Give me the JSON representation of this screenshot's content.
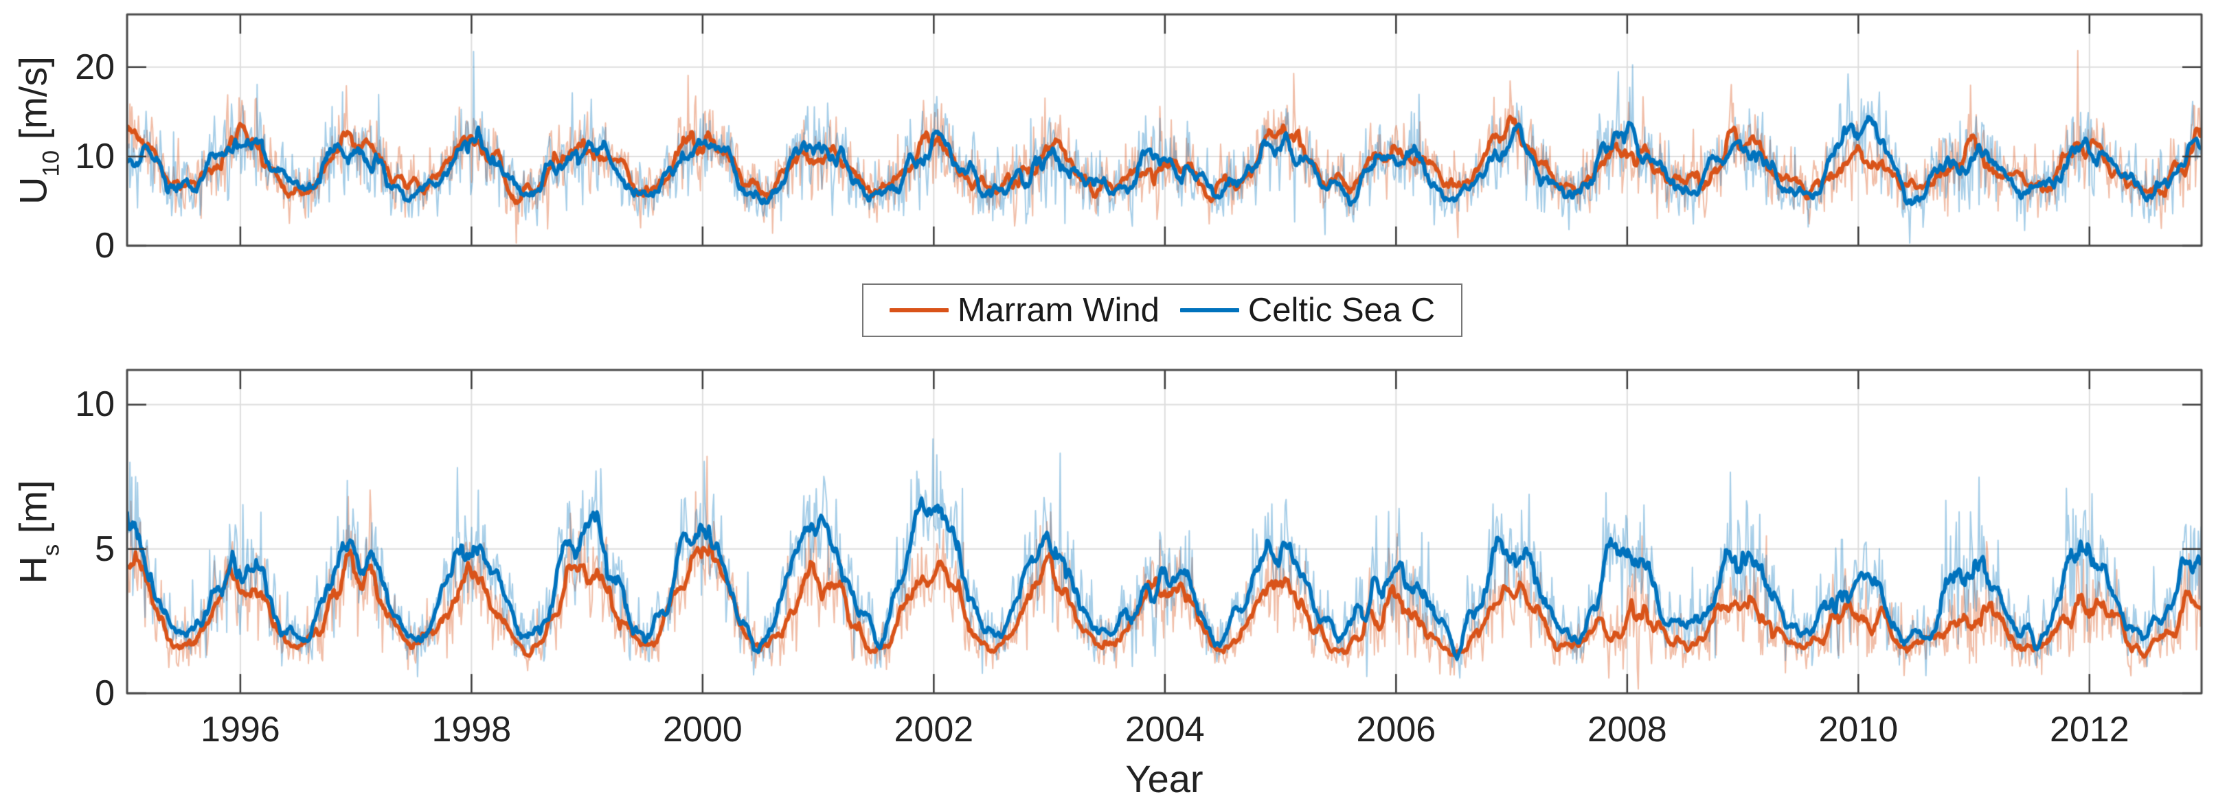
{
  "figure": {
    "xlabel": "Year",
    "x_ticks": [
      "1996",
      "1998",
      "2000",
      "2002",
      "2004",
      "2006",
      "2008",
      "2010",
      "2012"
    ],
    "x_tick_years": [
      1996,
      1998,
      2000,
      2002,
      2004,
      2006,
      2008,
      2010,
      2012
    ],
    "legend": {
      "position": "between-panels-centered",
      "items": [
        {
          "label": "Marram Wind",
          "color": "#D95319"
        },
        {
          "label": "Celtic Sea C",
          "color": "#0072BD"
        }
      ]
    },
    "colors": {
      "background": "#ffffff",
      "axis_box": "#4a4a4a",
      "tick": "#3c3c3c",
      "grid": "#dedede",
      "text": "#222222",
      "legend_border": "#767676"
    }
  },
  "chart_data": [
    {
      "type": "line",
      "panel": "wind-speed-u10",
      "ylabel": {
        "prefix": "U",
        "sub": "10",
        "suffix": " [m/s]"
      },
      "ylabel_text": "U10 [m/s]",
      "xlabel": "Year",
      "xlim": [
        1995.02,
        2012.97
      ],
      "ylim": [
        0,
        25.9
      ],
      "yticks": [
        0,
        10,
        20
      ],
      "x_ticks": [
        1996,
        1998,
        2000,
        2002,
        2004,
        2006,
        2008,
        2010,
        2012
      ],
      "grid": true,
      "has_raw_trace": true,
      "legend_entries": [
        "Marram Wind",
        "Celtic Sea C"
      ],
      "series": [
        {
          "name": "Marram Wind",
          "color": "#D95319",
          "raw_rgba": "rgba(217,83,25,0.38)",
          "summer_trough": 6.3,
          "winter_peak_start_year": 1995,
          "winter_peaks": [
            13.0,
            11.9,
            12.5,
            11.5,
            11.4,
            11.9,
            10.2,
            11.3,
            10.5,
            9.8,
            11.8,
            11.2,
            12.1,
            11.0,
            11.5,
            10.0,
            10.8,
            11.0,
            10.9
          ],
          "noise_std_winter": 2.3,
          "noise_std_summer": 1.6,
          "spike_prob": 0.03,
          "spike_max": 8,
          "floor": 0.3,
          "sample_interval_days": 3,
          "smooth_window_days": 33,
          "seed": 101
        },
        {
          "name": "Celtic Sea C",
          "color": "#0072BD",
          "raw_rgba": "rgba(0,114,189,0.35)",
          "summer_trough": 6.0,
          "winter_peak_start_year": 1995,
          "winter_peaks": [
            12.2,
            11.8,
            10.5,
            11.7,
            11.2,
            12.0,
            9.8,
            11.5,
            10.0,
            9.7,
            11.9,
            10.3,
            11.5,
            12.2,
            10.8,
            12.8,
            10.5,
            10.3,
            11.5
          ],
          "noise_std_winter": 2.4,
          "noise_std_summer": 1.7,
          "spike_prob": 0.035,
          "spike_max": 9,
          "floor": 0.3,
          "sample_interval_days": 3,
          "smooth_window_days": 33,
          "seed": 202
        }
      ]
    },
    {
      "type": "line",
      "panel": "wave-height-hs",
      "ylabel": {
        "prefix": "H",
        "sub": "s",
        "suffix": " [m]"
      },
      "ylabel_text": "Hs [m]",
      "xlabel": "Year",
      "xlim": [
        1995.02,
        2012.97
      ],
      "ylim": [
        0,
        11.2
      ],
      "yticks": [
        0,
        5,
        10
      ],
      "x_ticks": [
        1996,
        1998,
        2000,
        2002,
        2004,
        2006,
        2008,
        2010,
        2012
      ],
      "grid": true,
      "has_raw_trace": true,
      "legend_entries": [
        "Marram Wind",
        "Celtic Sea C"
      ],
      "series": [
        {
          "name": "Marram Wind",
          "color": "#D95319",
          "raw_rgba": "rgba(217,83,25,0.38)",
          "summer_trough": 1.55,
          "winter_peak_start_year": 1995,
          "winter_peaks": [
            4.8,
            4.0,
            4.4,
            3.6,
            4.5,
            4.8,
            3.9,
            4.6,
            4.0,
            3.8,
            3.4,
            3.0,
            3.3,
            2.9,
            3.2,
            3.0,
            2.7,
            3.0,
            3.3
          ],
          "noise_std_winter": 0.85,
          "noise_std_summer": 0.4,
          "spike_prob": 0.03,
          "spike_max": 3.2,
          "floor": 0.15,
          "sample_interval_days": 3,
          "smooth_window_days": 33,
          "seed": 303
        },
        {
          "name": "Celtic Sea C",
          "color": "#0072BD",
          "raw_rgba": "rgba(0,114,189,0.35)",
          "summer_trough": 1.95,
          "winter_peak_start_year": 1995,
          "winter_peaks": [
            5.6,
            4.3,
            5.2,
            5.3,
            6.1,
            5.6,
            5.6,
            6.3,
            5.0,
            4.5,
            5.0,
            4.3,
            4.9,
            5.0,
            4.6,
            3.9,
            4.4,
            4.5,
            4.9
          ],
          "noise_std_winter": 1.05,
          "noise_std_summer": 0.5,
          "spike_prob": 0.035,
          "spike_max": 3.8,
          "floor": 0.15,
          "sample_interval_days": 3,
          "smooth_window_days": 33,
          "seed": 404
        }
      ]
    }
  ]
}
